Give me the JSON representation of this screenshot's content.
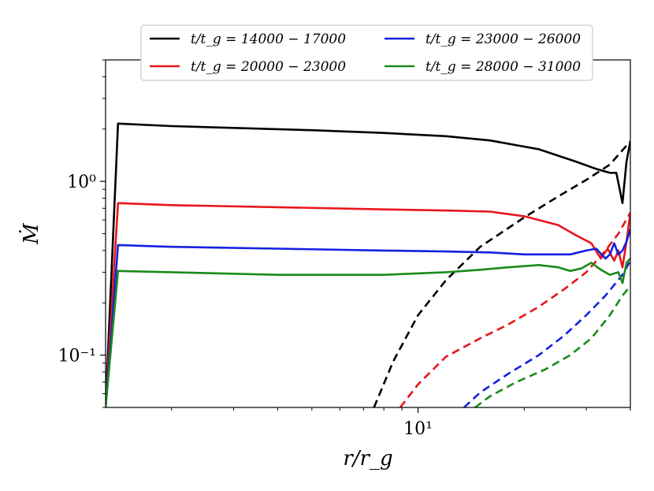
{
  "chart_data": {
    "type": "line",
    "xscale": "log",
    "yscale": "log",
    "xlim": [
      1.3,
      40
    ],
    "ylim": [
      0.05,
      5
    ],
    "xlabel": "r/r_g",
    "ylabel": "Ṁ",
    "x_ticks": [
      {
        "value": 10,
        "label": "10¹"
      }
    ],
    "y_ticks": [
      {
        "value": 1,
        "label": "10⁰"
      },
      {
        "value": 0.1,
        "label": "10⁻¹"
      }
    ],
    "grid": false,
    "legend": {
      "position": "top",
      "ncol": 2
    },
    "series": [
      {
        "name": "t/t_g = 14000 − 17000",
        "color": "#000000",
        "style": "solid",
        "x": [
          1.3,
          1.41,
          2,
          3,
          5,
          8,
          12,
          16,
          22,
          28,
          32,
          35,
          36.5,
          38,
          39,
          40
        ],
        "y": [
          0.05,
          2.15,
          2.08,
          2.03,
          1.97,
          1.9,
          1.82,
          1.72,
          1.53,
          1.3,
          1.18,
          1.12,
          1.12,
          0.75,
          1.3,
          1.7
        ]
      },
      {
        "name": "t/t_g = 14000 − 17000",
        "color": "#000000",
        "style": "dashed",
        "x": [
          7.5,
          8.5,
          10,
          12,
          15,
          20,
          25,
          30,
          35,
          40
        ],
        "y": [
          0.05,
          0.092,
          0.17,
          0.27,
          0.42,
          0.62,
          0.82,
          1.02,
          1.25,
          1.7
        ]
      },
      {
        "name": "t/t_g = 20000 − 23000",
        "color": "#e8151b",
        "style": "solid",
        "x": [
          1.3,
          1.41,
          2,
          4,
          8,
          12,
          16,
          20,
          25,
          28,
          31,
          33,
          34.5,
          36,
          37,
          38,
          39,
          40
        ],
        "y": [
          0.05,
          0.75,
          0.73,
          0.71,
          0.69,
          0.68,
          0.67,
          0.63,
          0.56,
          0.49,
          0.44,
          0.36,
          0.41,
          0.35,
          0.4,
          0.32,
          0.45,
          0.66
        ]
      },
      {
        "name": "t/t_g = 20000 − 23000",
        "color": "#e8151b",
        "style": "dashed",
        "x": [
          8.9,
          10,
          12,
          15,
          18,
          22,
          26,
          30,
          34,
          37,
          40
        ],
        "y": [
          0.05,
          0.068,
          0.098,
          0.125,
          0.15,
          0.19,
          0.24,
          0.3,
          0.4,
          0.5,
          0.66
        ]
      },
      {
        "name": "t/t_g = 23000 − 26000",
        "color": "#1221e2",
        "style": "solid",
        "x": [
          1.3,
          1.41,
          2,
          4,
          8,
          12,
          16,
          20,
          27,
          30,
          32,
          34,
          35,
          36,
          37,
          38,
          39,
          40
        ],
        "y": [
          0.05,
          0.43,
          0.42,
          0.41,
          0.4,
          0.395,
          0.39,
          0.38,
          0.38,
          0.4,
          0.41,
          0.36,
          0.38,
          0.44,
          0.38,
          0.4,
          0.45,
          0.53
        ]
      },
      {
        "name": "t/t_g = 23000 − 26000",
        "color": "#1221e2",
        "style": "dashed",
        "x": [
          13.5,
          15,
          18,
          22,
          26,
          30,
          34,
          38,
          40
        ],
        "y": [
          0.05,
          0.061,
          0.078,
          0.1,
          0.13,
          0.17,
          0.22,
          0.29,
          0.35
        ]
      },
      {
        "name": "t/t_g = 28000 − 31000",
        "color": "#1a8a1a",
        "style": "solid",
        "x": [
          1.3,
          1.41,
          2,
          4,
          8,
          12,
          15,
          18,
          22,
          25,
          27,
          29,
          31,
          33,
          35,
          37,
          38,
          39,
          40
        ],
        "y": [
          0.05,
          0.305,
          0.3,
          0.29,
          0.29,
          0.3,
          0.31,
          0.32,
          0.33,
          0.32,
          0.305,
          0.315,
          0.34,
          0.31,
          0.29,
          0.3,
          0.26,
          0.34,
          0.36
        ]
      },
      {
        "name": "t/t_g = 28000 − 31000",
        "color": "#1a8a1a",
        "style": "dashed",
        "x": [
          14.5,
          16,
          19,
          23,
          27,
          31,
          35,
          38,
          40
        ],
        "y": [
          0.05,
          0.058,
          0.07,
          0.083,
          0.1,
          0.125,
          0.17,
          0.22,
          0.25
        ]
      }
    ]
  }
}
